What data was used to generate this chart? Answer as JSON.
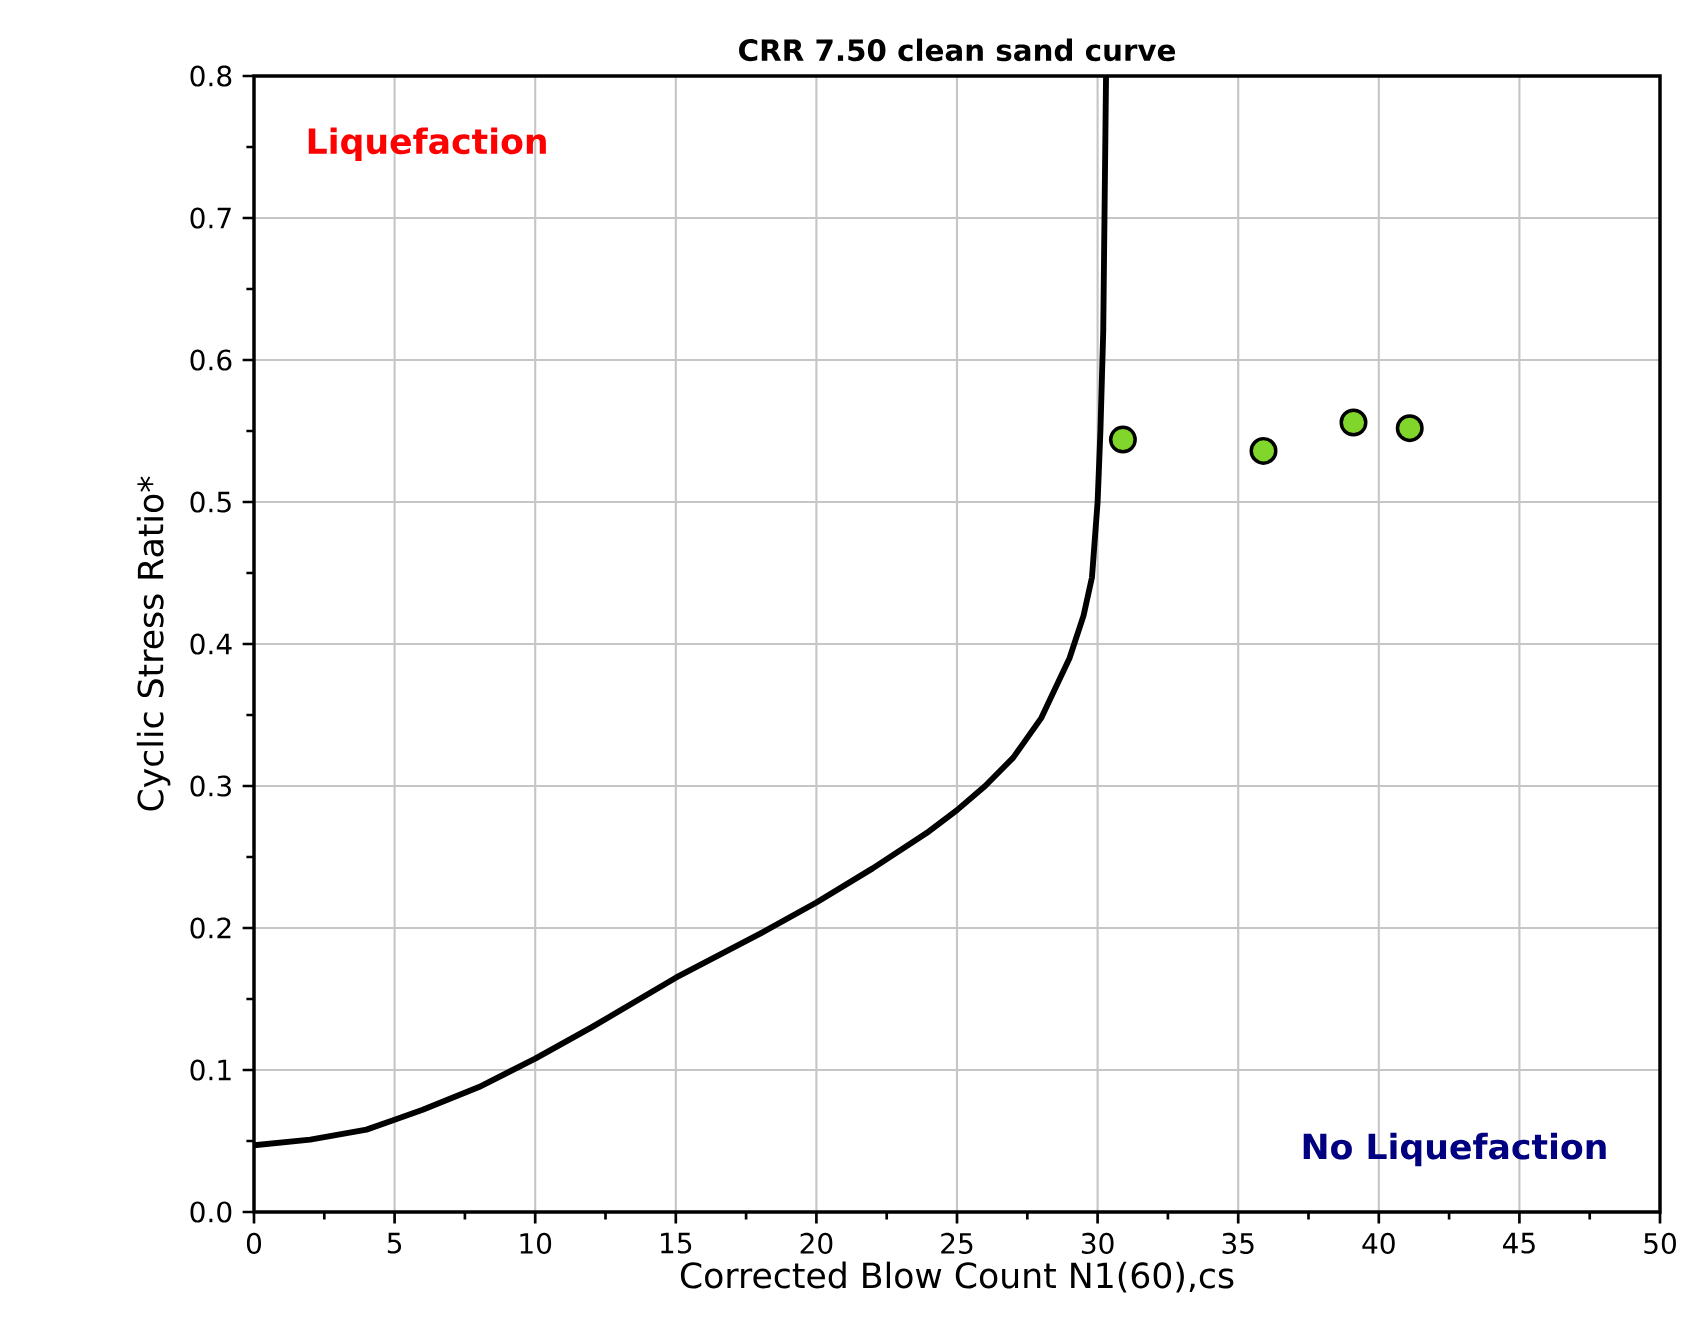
{
  "chart_data": {
    "type": "line",
    "title": "CRR 7.50 clean sand curve",
    "xlabel": "Corrected Blow Count N1(60),cs",
    "ylabel": "Cyclic Stress Ratio*",
    "annotations": [
      "Liquefaction",
      "No Liquefaction"
    ],
    "xlim": [
      0,
      50
    ],
    "ylim": [
      0,
      0.8
    ],
    "xticks": [
      0,
      5,
      10,
      15,
      20,
      25,
      30,
      35,
      40,
      45,
      50
    ],
    "yticks": [
      {
        "value": 0,
        "label": "0.0"
      },
      {
        "value": 0.1,
        "label": "0.1"
      },
      {
        "value": 0.2,
        "label": "0.2"
      },
      {
        "value": 0.3,
        "label": "0.3"
      },
      {
        "value": 0.4,
        "label": "0.4"
      },
      {
        "value": 0.5,
        "label": "0.5"
      },
      {
        "value": 0.6,
        "label": "0.6"
      },
      {
        "value": 0.7,
        "label": "0.7"
      },
      {
        "value": 0.8,
        "label": "0.8"
      }
    ],
    "grid": true,
    "series": [
      {
        "color": "#000000",
        "marker": "none",
        "x": [
          0,
          2,
          4,
          5,
          6,
          8,
          10,
          12,
          15,
          18,
          20,
          22,
          24,
          25,
          26,
          27,
          28,
          29,
          29.5,
          29.8,
          30,
          30.1,
          30.2,
          30.3
        ],
        "values": [
          0.047,
          0.051,
          0.058,
          0.065,
          0.072,
          0.088,
          0.108,
          0.13,
          0.165,
          0.196,
          0.218,
          0.242,
          0.268,
          0.283,
          0.3,
          0.32,
          0.348,
          0.39,
          0.42,
          0.447,
          0.5,
          0.55,
          0.62,
          0.8
        ]
      },
      {
        "type": "scatter",
        "color": "#80d62a",
        "marker": "circle",
        "x": [
          30.9,
          35.9,
          39.1,
          41.1
        ],
        "values": [
          0.544,
          0.536,
          0.556,
          0.552
        ]
      }
    ]
  }
}
